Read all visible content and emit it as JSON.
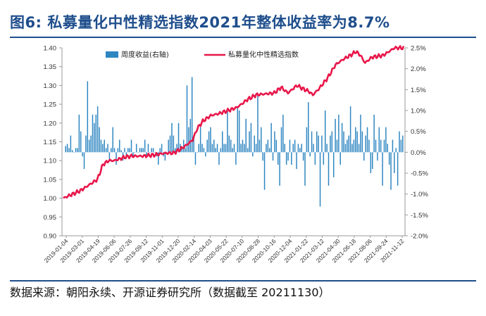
{
  "figure": {
    "title": "图6:  私募量化中性精选指数2021年整体收益率为8.7%",
    "source": "数据来源：朝阳永续、开源证券研究所（数据截至 20211130）"
  },
  "colors": {
    "title": "#1f4e8c",
    "bar": "#2e86c1",
    "line": "#e8174a"
  },
  "chart_data": {
    "type": "bar+line",
    "title": "私募量化中性精选指数2021年整体收益率为8.7%",
    "legend": {
      "placement": "top-left",
      "entries": [
        "周度收益(右轴)",
        "私募量化中性精选指数"
      ]
    },
    "x_ticks": [
      "2019-01-04",
      "2019-03-01",
      "2019-04-19",
      "2019-06-06",
      "2019-07-26",
      "2019-09-12",
      "2019-11-01",
      "2019-12-20",
      "2020-02-14",
      "2020-04-03",
      "2020-05-22",
      "2020-07-10",
      "2020-08-28",
      "2020-10-16",
      "2020-12-04",
      "2021-01-22",
      "2021-03-12",
      "2021-04-30",
      "2021-06-18",
      "2021-08-06",
      "2021-09-24",
      "2021-11-12"
    ],
    "y_left": {
      "min": 0.9,
      "max": 1.4,
      "step": 0.05,
      "ticks": [
        "0.90",
        "0.95",
        "1.00",
        "1.05",
        "1.10",
        "1.15",
        "1.20",
        "1.25",
        "1.30",
        "1.35",
        "1.40"
      ]
    },
    "y_right": {
      "min": -2.0,
      "max": 2.5,
      "step": 0.5,
      "ticks": [
        "-2.0%",
        "-1.5%",
        "-1.0%",
        "-0.5%",
        "0.0%",
        "0.5%",
        "1.0%",
        "1.5%",
        "2.0%",
        "2.5%"
      ]
    },
    "series": [
      {
        "name": "周度收益(右轴)",
        "axis": "right",
        "type": "bar",
        "unit": "%",
        "values": [
          0.15,
          0.2,
          0.1,
          0.4,
          0.05,
          0.0,
          0.1,
          0.1,
          0.9,
          0.5,
          -0.1,
          -0.4,
          0.4,
          1.7,
          0.3,
          0.4,
          0.9,
          0.7,
          0.9,
          1.1,
          0.6,
          0.3,
          0.2,
          0.3,
          0.1,
          0.2,
          -0.2,
          0.1,
          0.6,
          0.1,
          -0.3,
          0.1,
          0.3,
          0.05,
          -0.2,
          0.1,
          -0.1,
          0.1,
          0.1,
          0.3,
          -0.1,
          0.0,
          0.2,
          0.0,
          0.1,
          0.1,
          0.1,
          0.3,
          -0.1,
          0.2,
          0.0,
          0.1,
          0.1,
          0.0,
          -0.1,
          -0.3,
          0.1,
          0.2,
          -0.1,
          -0.2,
          0.0,
          0.3,
          0.4,
          0.7,
          0.4,
          0.1,
          0.2,
          0.7,
          0.2,
          0.1,
          0.3,
          0.1,
          1.6,
          0.6,
          0.8,
          1.8,
          0.4,
          -0.3,
          0.0,
          0.2,
          0.6,
          0.2,
          0.1,
          -0.1,
          0.3,
          0.5,
          0.6,
          0.2,
          0.3,
          0.1,
          0.2,
          -0.3,
          0.1,
          0.5,
          0.2,
          0.2,
          1.0,
          0.4,
          0.3,
          0.1,
          0.2,
          -0.3,
          1.1,
          1.0,
          0.2,
          0.3,
          0.2,
          0.8,
          0.1,
          0.5,
          0.7,
          -0.1,
          0.4,
          0.2,
          1.4,
          0.3,
          0.6,
          -0.2,
          -0.9,
          0.2,
          0.3,
          0.1,
          0.7,
          -0.2,
          0.5,
          0.3,
          -0.3,
          -0.8,
          0.6,
          0.9,
          0.2,
          -0.3,
          -0.2,
          0.3,
          -0.3,
          0.2,
          0.3,
          -0.4,
          0.2,
          0.1,
          0.2,
          -0.2,
          -0.8,
          0.6,
          1.2,
          -0.1,
          0.5,
          0.2,
          -0.3,
          0.5,
          0.4,
          -1.3,
          0.4,
          -0.3,
          1.0,
          0.2,
          -0.8,
          0.4,
          0.5,
          -0.6,
          0.8,
          0.3,
          0.9,
          -0.3,
          0.7,
          0.5,
          0.2,
          0.3,
          0.4,
          1.1,
          0.2,
          0.3,
          0.6,
          0.5,
          0.2,
          0.9,
          0.5,
          -0.2,
          0.4,
          0.6,
          0.3,
          -0.5,
          -0.4,
          0.9,
          0.3,
          -0.2,
          0.6,
          0.3,
          -0.8,
          0.3,
          0.6,
          0.2,
          -0.3,
          -0.9,
          0.3,
          -0.5,
          0.1,
          -0.8,
          0.5,
          0.3,
          0.4
        ],
        "note": "approx. weekly returns, 2019-01-04 to 2021-11-26"
      },
      {
        "name": "私募量化中性精选指数",
        "axis": "left",
        "type": "line",
        "anchors": [
          [
            0,
            1.0
          ],
          [
            15,
            1.02
          ],
          [
            20,
            1.03
          ],
          [
            25,
            1.04
          ],
          [
            30,
            1.05
          ],
          [
            35,
            1.09
          ],
          [
            40,
            1.1
          ],
          [
            45,
            1.1
          ],
          [
            55,
            1.11
          ],
          [
            60,
            1.112
          ],
          [
            70,
            1.112
          ],
          [
            80,
            1.115
          ],
          [
            90,
            1.12
          ],
          [
            97,
            1.12
          ],
          [
            103,
            1.13
          ],
          [
            108,
            1.14
          ],
          [
            114,
            1.155
          ],
          [
            118,
            1.185
          ],
          [
            123,
            1.205
          ],
          [
            130,
            1.22
          ],
          [
            137,
            1.225
          ],
          [
            145,
            1.233
          ],
          [
            152,
            1.24
          ],
          [
            157,
            1.25
          ],
          [
            162,
            1.262
          ],
          [
            170,
            1.275
          ],
          [
            180,
            1.278
          ],
          [
            186,
            1.28
          ],
          [
            192,
            1.295
          ],
          [
            198,
            1.28
          ],
          [
            206,
            1.3
          ],
          [
            212,
            1.29
          ],
          [
            216,
            1.285
          ],
          [
            220,
            1.275
          ],
          [
            225,
            1.29
          ],
          [
            233,
            1.32
          ],
          [
            240,
            1.355
          ],
          [
            247,
            1.37
          ],
          [
            253,
            1.38
          ],
          [
            258,
            1.39
          ],
          [
            262,
            1.38
          ],
          [
            266,
            1.36
          ],
          [
            272,
            1.375
          ],
          [
            282,
            1.38
          ],
          [
            292,
            1.4
          ],
          [
            300,
            1.4
          ]
        ],
        "anchor_note": "[x position along date axis (0 = 2019-01-04, 300 = 2021-11-30), index level]"
      }
    ]
  }
}
